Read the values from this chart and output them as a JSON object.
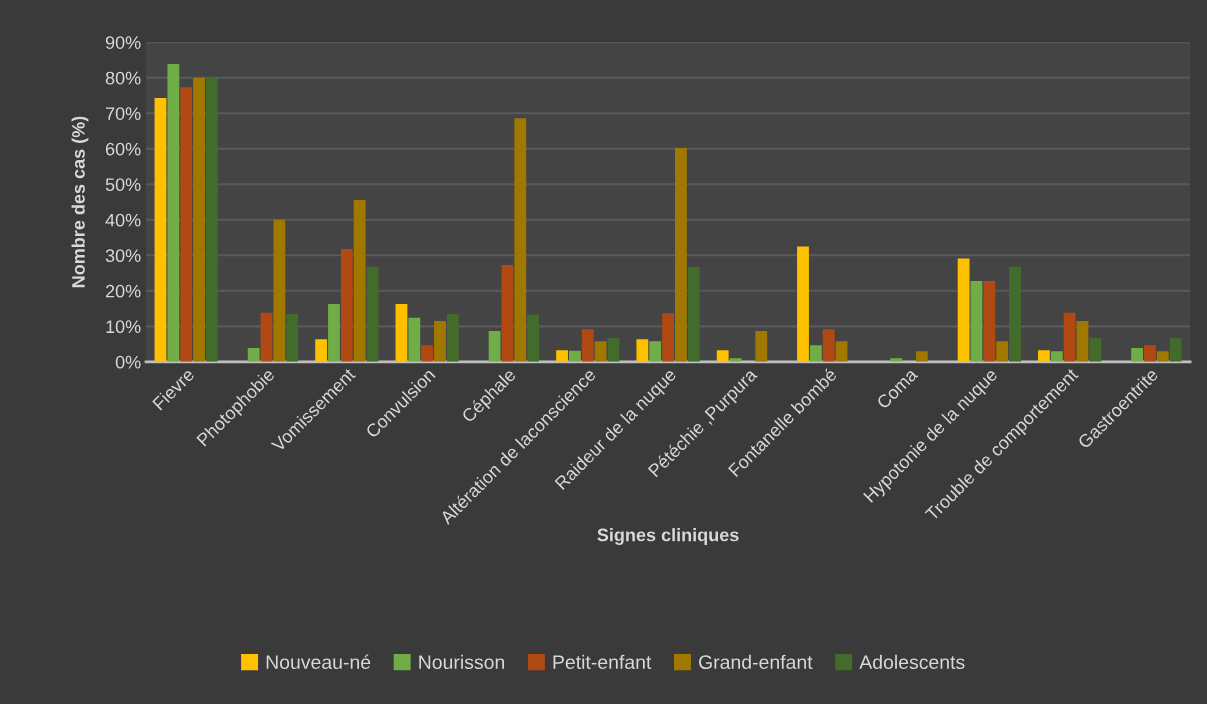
{
  "chart_data": {
    "type": "bar",
    "xlabel": "Signes cliniques",
    "ylabel": "Nombre des cas (%)",
    "categories": [
      "Fievre",
      "Photophobie",
      "Vomissement",
      "Convulsion",
      "Céphale",
      "Altération de laconscience",
      "Raideur de la nuque",
      "Pétéchie ,Purpura",
      "Fontanelle bombé",
      "Coma",
      "Hypotonie de la nuque",
      "Trouble de comportement",
      "Gastroentrite"
    ],
    "series": [
      {
        "name": "Nouveau-né",
        "color": "#ffc000",
        "values": [
          74.3,
          null,
          6.4,
          16.3,
          null,
          3.3,
          6.4,
          3.3,
          32.5,
          null,
          29.1,
          3.3,
          null
        ]
      },
      {
        "name": "Nourisson",
        "color": "#70ad47",
        "values": [
          83.9,
          3.9,
          16.3,
          12.4,
          8.7,
          3.1,
          5.8,
          1.0,
          4.7,
          1.0,
          22.8,
          3.0,
          3.9
        ]
      },
      {
        "name": "Petit-enfant",
        "color": "#b04a12",
        "values": [
          77.3,
          13.8,
          31.8,
          4.7,
          27.3,
          9.2,
          13.7,
          null,
          9.2,
          null,
          22.8,
          13.8,
          4.7
        ]
      },
      {
        "name": "Grand-enfant",
        "color": "#a07800",
        "values": [
          80.0,
          40.0,
          45.6,
          11.5,
          68.6,
          5.8,
          60.2,
          8.7,
          5.8,
          3.0,
          5.8,
          11.5,
          3.0
        ]
      },
      {
        "name": "Adolescents",
        "color": "#436b2b",
        "values": [
          80.0,
          13.5,
          26.8,
          13.5,
          13.3,
          6.7,
          26.7,
          null,
          null,
          null,
          26.8,
          6.7,
          6.7
        ]
      }
    ],
    "ylim": [
      0,
      90
    ],
    "yticks": [
      {
        "value": 0,
        "label": "0%"
      },
      {
        "value": 10,
        "label": "10%"
      },
      {
        "value": 20,
        "label": "20%"
      },
      {
        "value": 30,
        "label": "30%"
      },
      {
        "value": 40,
        "label": "40%"
      },
      {
        "value": 50,
        "label": "50%"
      },
      {
        "value": 60,
        "label": "60%"
      },
      {
        "value": 70,
        "label": "70%"
      },
      {
        "value": 80,
        "label": "80%"
      },
      {
        "value": 90,
        "label": "90%"
      }
    ],
    "grid": "y",
    "legend": "bottom"
  }
}
